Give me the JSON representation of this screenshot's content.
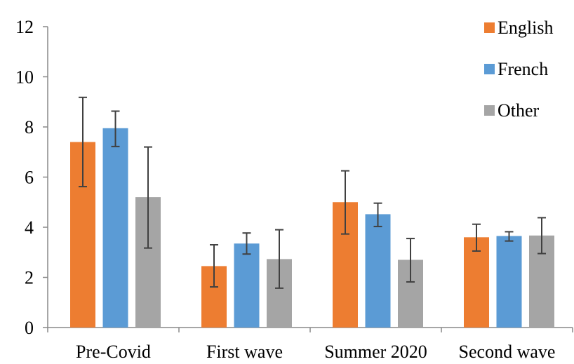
{
  "chart_data": {
    "type": "bar",
    "title": "",
    "xlabel": "",
    "ylabel": "",
    "ylim": [
      0,
      12
    ],
    "yticks": [
      0,
      2,
      4,
      6,
      8,
      10,
      12
    ],
    "grid": false,
    "legend_position": "top-right",
    "categories": [
      "Pre-Covid",
      "First wave",
      "Summer 2020",
      "Second wave"
    ],
    "series": [
      {
        "name": "English",
        "color": "#ED7D31",
        "values": [
          7.4,
          2.45,
          5.0,
          3.6
        ],
        "err_low": [
          5.62,
          1.62,
          3.73,
          3.05
        ],
        "err_high": [
          9.18,
          3.3,
          6.25,
          4.12
        ]
      },
      {
        "name": "French",
        "color": "#5B9BD5",
        "values": [
          7.95,
          3.35,
          4.52,
          3.65
        ],
        "err_low": [
          7.22,
          2.93,
          4.03,
          3.45
        ],
        "err_high": [
          8.63,
          3.77,
          4.96,
          3.82
        ]
      },
      {
        "name": "Other",
        "color": "#A5A5A5",
        "values": [
          5.2,
          2.73,
          2.7,
          3.67
        ],
        "err_low": [
          3.17,
          1.57,
          1.82,
          2.95
        ],
        "err_high": [
          7.2,
          3.9,
          3.55,
          4.38
        ]
      }
    ],
    "colors": {
      "axis": "#888888",
      "error_bar": "#404040"
    }
  }
}
